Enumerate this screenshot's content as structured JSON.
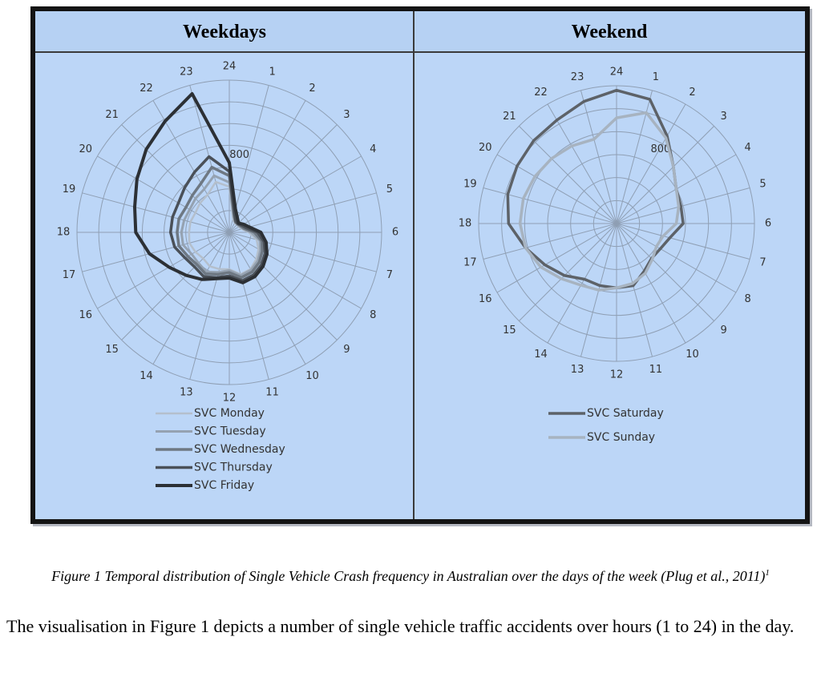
{
  "caption": {
    "text": "Figure 1 Temporal distribution of Single Vehicle Crash frequency in Australian over the days of the week (Plug et al., 2011)",
    "superscript": "1"
  },
  "body_text": "The visualisation in Figure 1 depicts a number of single vehicle traffic accidents over hours (1 to 24) in the day.",
  "colors": {
    "panel_bg": "#bcd6f7",
    "grid": "#8f9fb4",
    "monday": "#b4bfcc",
    "tuesday": "#95a2b1",
    "wednesday": "#6e7883",
    "thursday": "#4a5058",
    "friday": "#2c3035",
    "saturday": "#5d6268",
    "sunday": "#a7b3c0"
  },
  "chart_data": [
    {
      "type": "radar",
      "title": "Weekdays",
      "categories": [
        "24",
        "1",
        "2",
        "3",
        "4",
        "5",
        "6",
        "7",
        "8",
        "9",
        "10",
        "11",
        "12",
        "13",
        "14",
        "15",
        "16",
        "17",
        "18",
        "19",
        "20",
        "21",
        "22",
        "23"
      ],
      "rmax": 1400,
      "ring_step": 200,
      "radial_label": "800",
      "series": [
        {
          "name": "SVC Monday",
          "values": [
            420,
            130,
            100,
            100,
            100,
            120,
            180,
            260,
            310,
            350,
            390,
            400,
            340,
            350,
            360,
            340,
            360,
            380,
            370,
            370,
            360,
            380,
            400,
            480
          ]
        },
        {
          "name": "SVC Tuesday",
          "values": [
            460,
            150,
            110,
            100,
            110,
            130,
            200,
            290,
            330,
            370,
            400,
            410,
            350,
            380,
            420,
            400,
            400,
            440,
            440,
            430,
            420,
            440,
            460,
            540
          ]
        },
        {
          "name": "SVC Wednesday",
          "values": [
            520,
            170,
            110,
            110,
            120,
            140,
            230,
            310,
            350,
            390,
            420,
            430,
            370,
            400,
            440,
            420,
            440,
            480,
            480,
            480,
            460,
            480,
            520,
            620
          ]
        },
        {
          "name": "SVC Thursday",
          "values": [
            560,
            180,
            120,
            110,
            130,
            160,
            260,
            330,
            380,
            420,
            450,
            460,
            400,
            430,
            470,
            450,
            470,
            520,
            540,
            540,
            540,
            580,
            640,
            720
          ]
        },
        {
          "name": "SVC Friday",
          "values": [
            640,
            220,
            150,
            120,
            150,
            190,
            290,
            350,
            400,
            440,
            470,
            480,
            420,
            440,
            500,
            560,
            640,
            760,
            860,
            900,
            980,
            1080,
            1180,
            1320
          ]
        }
      ]
    },
    {
      "type": "radar",
      "title": "Weekend",
      "categories": [
        "24",
        "1",
        "2",
        "3",
        "4",
        "5",
        "6",
        "7",
        "8",
        "9",
        "10",
        "11",
        "12",
        "13",
        "14",
        "15",
        "16",
        "17",
        "18",
        "19",
        "20",
        "21",
        "22",
        "23"
      ],
      "rmax": 1200,
      "ring_step": 200,
      "radial_label": "800",
      "series": [
        {
          "name": "SVC Saturday",
          "values": [
            1160,
            1120,
            880,
            700,
            600,
            580,
            580,
            480,
            440,
            430,
            480,
            560,
            560,
            560,
            560,
            640,
            720,
            820,
            940,
            980,
            1000,
            1020,
            1040,
            1100
          ]
        },
        {
          "name": "SVC Sunday",
          "values": [
            920,
            1000,
            860,
            700,
            600,
            560,
            520,
            420,
            400,
            440,
            500,
            540,
            560,
            600,
            620,
            680,
            760,
            820,
            840,
            840,
            820,
            800,
            780,
            760
          ]
        }
      ]
    }
  ]
}
